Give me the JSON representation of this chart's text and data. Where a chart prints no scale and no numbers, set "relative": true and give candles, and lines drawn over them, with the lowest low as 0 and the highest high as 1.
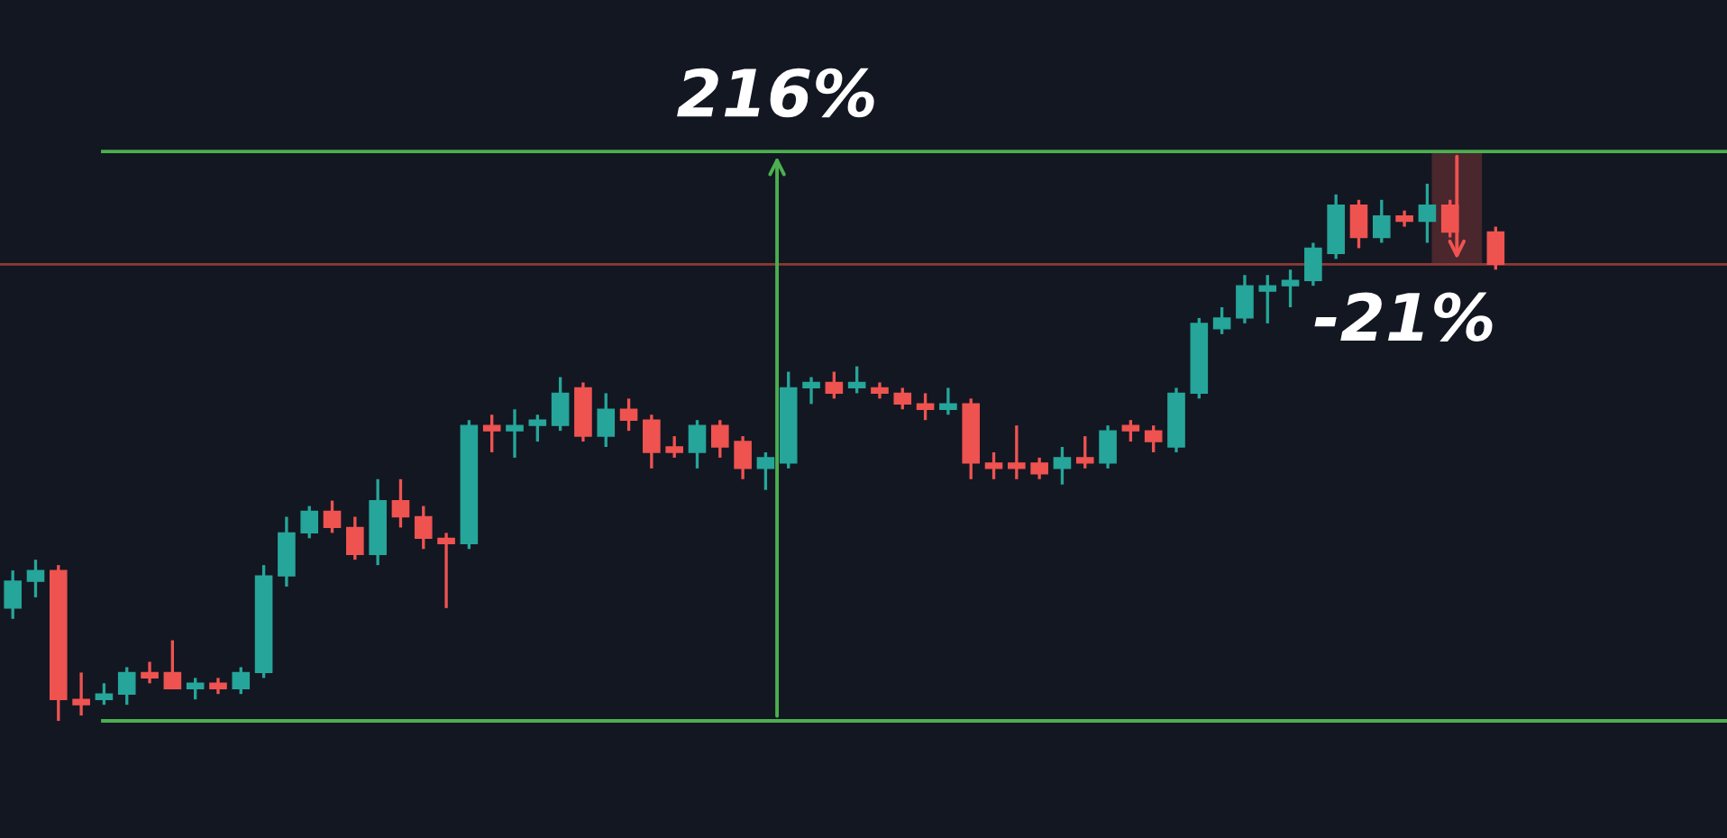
{
  "chart_data": {
    "type": "candlestick",
    "relative": true,
    "categories": [
      null,
      null,
      null,
      null,
      null,
      null,
      null,
      null,
      null,
      null,
      null,
      null,
      null,
      null,
      null,
      null,
      null,
      null,
      null,
      null,
      null,
      null,
      null,
      null,
      null,
      null,
      null,
      null,
      null,
      null,
      null,
      null,
      null,
      null,
      null,
      null,
      null,
      null,
      null,
      null,
      null,
      null,
      null,
      null,
      null,
      null,
      null,
      null,
      null,
      null,
      null,
      null,
      null,
      null,
      null,
      null,
      null,
      null,
      null,
      null,
      null,
      null,
      null,
      null,
      null,
      null
    ],
    "ohlc": [
      [
        0.21,
        0.28,
        0.19,
        0.26
      ],
      [
        0.26,
        0.3,
        0.23,
        0.28
      ],
      [
        0.28,
        0.29,
        0.0,
        0.04
      ],
      [
        0.04,
        0.09,
        0.01,
        0.03
      ],
      [
        0.04,
        0.07,
        0.03,
        0.05
      ],
      [
        0.05,
        0.1,
        0.03,
        0.09
      ],
      [
        0.09,
        0.11,
        0.07,
        0.08
      ],
      [
        0.09,
        0.15,
        0.06,
        0.06
      ],
      [
        0.06,
        0.08,
        0.04,
        0.07
      ],
      [
        0.07,
        0.08,
        0.05,
        0.06
      ],
      [
        0.06,
        0.1,
        0.05,
        0.09
      ],
      [
        0.09,
        0.29,
        0.08,
        0.27
      ],
      [
        0.27,
        0.38,
        0.25,
        0.35
      ],
      [
        0.35,
        0.4,
        0.34,
        0.39
      ],
      [
        0.39,
        0.41,
        0.35,
        0.36
      ],
      [
        0.36,
        0.38,
        0.3,
        0.31
      ],
      [
        0.31,
        0.45,
        0.29,
        0.41
      ],
      [
        0.41,
        0.45,
        0.36,
        0.38
      ],
      [
        0.38,
        0.4,
        0.32,
        0.34
      ],
      [
        0.34,
        0.35,
        0.21,
        0.33
      ],
      [
        0.33,
        0.56,
        0.32,
        0.55
      ],
      [
        0.55,
        0.57,
        0.5,
        0.54
      ],
      [
        0.54,
        0.58,
        0.49,
        0.55
      ],
      [
        0.55,
        0.57,
        0.52,
        0.56
      ],
      [
        0.55,
        0.64,
        0.54,
        0.61
      ],
      [
        0.62,
        0.63,
        0.52,
        0.53
      ],
      [
        0.53,
        0.61,
        0.51,
        0.58
      ],
      [
        0.58,
        0.6,
        0.54,
        0.56
      ],
      [
        0.56,
        0.57,
        0.47,
        0.5
      ],
      [
        0.51,
        0.53,
        0.49,
        0.5
      ],
      [
        0.5,
        0.56,
        0.47,
        0.55
      ],
      [
        0.55,
        0.56,
        0.49,
        0.51
      ],
      [
        0.52,
        0.53,
        0.45,
        0.47
      ],
      [
        0.47,
        0.5,
        0.43,
        0.49
      ],
      [
        0.48,
        0.65,
        0.47,
        0.62
      ],
      [
        0.62,
        0.64,
        0.59,
        0.63
      ],
      [
        0.63,
        0.65,
        0.6,
        0.61
      ],
      [
        0.62,
        0.66,
        0.61,
        0.63
      ],
      [
        0.62,
        0.63,
        0.6,
        0.61
      ],
      [
        0.61,
        0.62,
        0.58,
        0.59
      ],
      [
        0.59,
        0.61,
        0.56,
        0.58
      ],
      [
        0.58,
        0.62,
        0.57,
        0.59
      ],
      [
        0.59,
        0.6,
        0.45,
        0.48
      ],
      [
        0.48,
        0.5,
        0.45,
        0.47
      ],
      [
        0.48,
        0.55,
        0.45,
        0.47
      ],
      [
        0.48,
        0.49,
        0.45,
        0.46
      ],
      [
        0.47,
        0.51,
        0.44,
        0.49
      ],
      [
        0.49,
        0.53,
        0.47,
        0.48
      ],
      [
        0.48,
        0.55,
        0.47,
        0.54
      ],
      [
        0.55,
        0.56,
        0.52,
        0.54
      ],
      [
        0.54,
        0.55,
        0.5,
        0.52
      ],
      [
        0.51,
        0.62,
        0.5,
        0.61
      ],
      [
        0.61,
        0.75,
        0.6,
        0.74
      ],
      [
        0.73,
        0.77,
        0.72,
        0.75
      ],
      [
        0.75,
        0.83,
        0.74,
        0.81
      ],
      [
        0.8,
        0.83,
        0.74,
        0.81
      ],
      [
        0.81,
        0.84,
        0.77,
        0.82
      ],
      [
        0.82,
        0.89,
        0.81,
        0.88
      ],
      [
        0.87,
        0.98,
        0.86,
        0.96
      ],
      [
        0.96,
        0.97,
        0.88,
        0.9
      ],
      [
        0.9,
        0.97,
        0.89,
        0.94
      ],
      [
        0.94,
        0.95,
        0.92,
        0.93
      ],
      [
        0.93,
        1.0,
        0.89,
        0.96
      ],
      [
        0.96,
        0.97,
        0.9,
        0.91
      ],
      null,
      [
        0.91,
        0.92,
        0.84,
        0.85
      ]
    ],
    "colors": [
      "#26a69a",
      "#26a69a",
      "#ef5350",
      "#ef5350",
      "#26a69a",
      "#26a69a",
      "#ef5350",
      "#ef5350",
      "#26a69a",
      "#ef5350",
      "#26a69a",
      "#26a69a",
      "#26a69a",
      "#26a69a",
      "#ef5350",
      "#ef5350",
      "#26a69a",
      "#ef5350",
      "#ef5350",
      "#ef5350",
      "#26a69a",
      "#ef5350",
      "#26a69a",
      "#26a69a",
      "#26a69a",
      "#ef5350",
      "#26a69a",
      "#ef5350",
      "#ef5350",
      "#ef5350",
      "#26a69a",
      "#ef5350",
      "#ef5350",
      "#26a69a",
      "#26a69a",
      "#26a69a",
      "#ef5350",
      "#26a69a",
      "#ef5350",
      "#ef5350",
      "#ef5350",
      "#26a69a",
      "#ef5350",
      "#ef5350",
      "#ef5350",
      "#ef5350",
      "#26a69a",
      "#ef5350",
      "#26a69a",
      "#ef5350",
      "#ef5350",
      "#26a69a",
      "#26a69a",
      "#26a69a",
      "#26a69a",
      "#26a69a",
      "#26a69a",
      "#26a69a",
      "#26a69a",
      "#ef5350",
      "#26a69a",
      "#ef5350",
      "#26a69a",
      "#ef5350",
      null,
      "#ef5350"
    ],
    "ref_lines": [
      {
        "axis": "y",
        "value": 1.06,
        "color": "#4caf50"
      },
      {
        "axis": "y",
        "value": 0.0,
        "color": "#4caf50"
      },
      {
        "axis": "y",
        "value": 0.85,
        "color": "#8c3a35"
      }
    ],
    "annotations": [
      "216%",
      "-21%"
    ]
  }
}
